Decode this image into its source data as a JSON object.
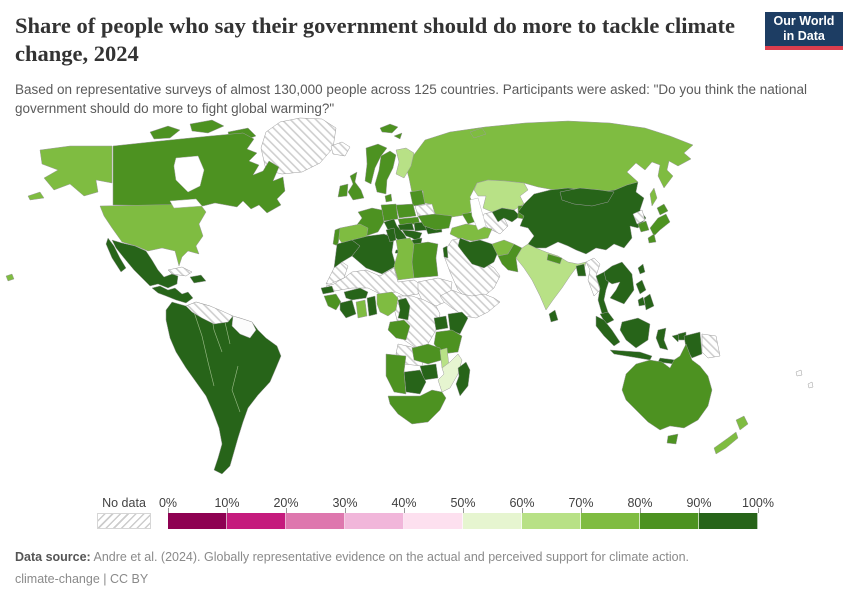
{
  "header": {
    "title": "Share of people who say their government should do more to tackle climate change, 2024",
    "subtitle": "Based on representative surveys of almost 130,000 people across 125 countries. Participants were asked: \"Do you think the national government should do more to fight global warming?\"",
    "logo": {
      "line1": "Our World",
      "line2": "in Data",
      "bg_color": "#1d3d63",
      "accent_color": "#dc3e4e"
    }
  },
  "legend": {
    "no_data_label": "No data",
    "ticks": [
      "0%",
      "10%",
      "20%",
      "30%",
      "40%",
      "50%",
      "60%",
      "70%",
      "80%",
      "90%",
      "100%"
    ],
    "bins": [
      {
        "range": "0-10%",
        "color": "#8e0152"
      },
      {
        "range": "10-20%",
        "color": "#c51b7d"
      },
      {
        "range": "20-30%",
        "color": "#de77ae"
      },
      {
        "range": "30-40%",
        "color": "#f1b6da"
      },
      {
        "range": "40-50%",
        "color": "#fde0ef"
      },
      {
        "range": "50-60%",
        "color": "#e6f5d0"
      },
      {
        "range": "60-70%",
        "color": "#b8e186"
      },
      {
        "range": "70-80%",
        "color": "#7fbc41"
      },
      {
        "range": "80-90%",
        "color": "#4d9221"
      },
      {
        "range": "90-100%",
        "color": "#276419"
      }
    ]
  },
  "footer": {
    "source_label": "Data source:",
    "source_text": " Andre et al. (2024). Globally representative evidence on the actual and perceived support for climate action.",
    "note_text": "climate-change | CC BY"
  },
  "chart_data": {
    "type": "choropleth",
    "title": "Share of people who say their government should do more to tackle climate change",
    "year": 2024,
    "unit": "% of people",
    "bin_colors": {
      "0-10%": "#8e0152",
      "10-20%": "#c51b7d",
      "20-30%": "#de77ae",
      "30-40%": "#f1b6da",
      "40-50%": "#fde0ef",
      "50-60%": "#e6f5d0",
      "60-70%": "#b8e186",
      "70-80%": "#7fbc41",
      "80-90%": "#4d9221",
      "90-100%": "#276419"
    },
    "country_bins": {
      "Greenland": "No data",
      "Canada": "80-90%",
      "United States": "70-80%",
      "Mexico": "90-100%",
      "Central America": "90-100%",
      "Cuba": "No data",
      "Hispaniola": "90-100%",
      "South America (excl. Venezuela, Guyanas)": "90-100%",
      "Venezuela": "No data",
      "Guyana & Suriname": "blank",
      "Iceland": "No data",
      "Norway": "80-90%",
      "Sweden": "80-90%",
      "Finland": "60-70%",
      "Denmark": "80-90%",
      "United Kingdom": "80-90%",
      "Ireland": "80-90%",
      "Baltic states": "80-90%",
      "Belarus": "No data",
      "Poland": "80-90%",
      "Germany": "80-90%",
      "France": "80-90%",
      "Spain": "70-80%",
      "Portugal": "80-90%",
      "Italy": "90-100%",
      "Czechia & Slovakia": "80-90%",
      "Austria": "90-100%",
      "Hungary": "90-100%",
      "Romania & Bulgaria": "90-100%",
      "Balkans": "90-100%",
      "Greece": "90-100%",
      "Ukraine": "80-90%",
      "Russia": "70-80%",
      "Kazakhstan": "60-70%",
      "Uzbekistan": "90-100%",
      "Turkmenistan": "No data",
      "Kyrgyzstan & Tajikistan": "80-90%",
      "Caucasus": "80-90%",
      "Turkey": "70-80%",
      "Middle East (Syria, Iraq, Arabian Peninsula)": "No data",
      "Israel": "90-100%",
      "Iran": "90-100%",
      "Afghanistan": "70-80%",
      "Pakistan": "80-90%",
      "India": "60-70%",
      "Nepal": "80-90%",
      "Bangladesh": "90-100%",
      "Sri Lanka": "90-100%",
      "Myanmar": "No data",
      "Thailand": "90-100%",
      "Indochina (Vietnam, Laos, Cambodia)": "90-100%",
      "Malaysia": "90-100%",
      "Indonesia": "90-100%",
      "Papua New Guinea": "No data",
      "Philippines": "90-100%",
      "Taiwan": "90-100%",
      "China": "90-100%",
      "Mongolia": "90-100%",
      "North Korea": "No data",
      "South Korea": "80-90%",
      "Japan": "80-90%",
      "Australia": "80-90%",
      "New Zealand": "70-80%",
      "Morocco": "90-100%",
      "Western Sahara": "No data",
      "Algeria": "90-100%",
      "Tunisia": "90-100%",
      "Libya": "70-80%",
      "Egypt": "80-90%",
      "Sahel (Mauritania, Mali, Niger, Chad)": "No data",
      "Sudan": "No data",
      "Horn of Africa (Ethiopia, Somalia)": "No data",
      "Central Africa (S. Sudan, CAR, DR Congo)": "No data",
      "Angola": "No data",
      "Senegal": "90-100%",
      "Guinea": "80-90%",
      "Cote d'Ivoire": "90-100%",
      "Ghana": "70-80%",
      "Togo & Benin": "90-100%",
      "Burkina Faso": "90-100%",
      "Nigeria": "70-80%",
      "Cameroon": "90-100%",
      "Gabon & Congo": "80-90%",
      "Uganda": "90-100%",
      "Kenya": "90-100%",
      "Tanzania": "80-90%",
      "Zambia": "80-90%",
      "Malawi": "60-70%",
      "Mozambique": "50-60%",
      "Zimbabwe": "90-100%",
      "Botswana": "90-100%",
      "Namibia": "80-90%",
      "South Africa": "80-90%",
      "Madagascar": "90-100%",
      "Pacific islands": "blank"
    },
    "layout": {
      "legend_position": "bottom",
      "no_data_style": "diagonal-hatch",
      "projection": "world"
    }
  }
}
